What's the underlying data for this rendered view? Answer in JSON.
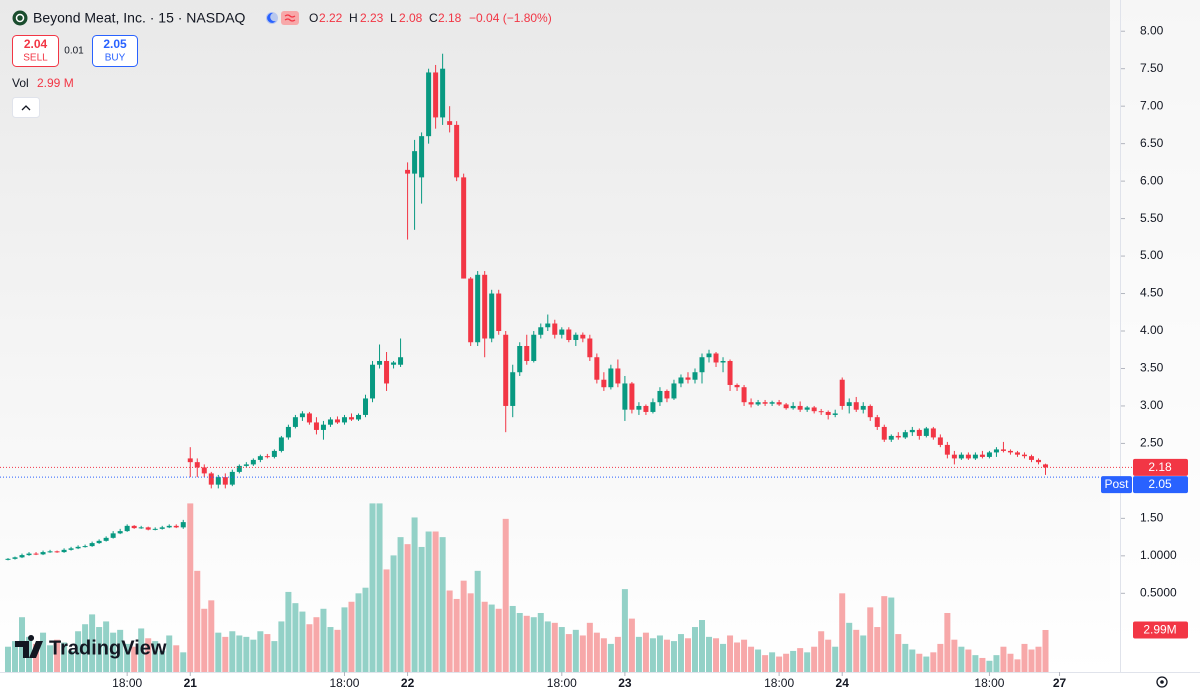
{
  "header": {
    "symbol": "Beyond Meat, Inc. · 15 · NASDAQ",
    "ohlc_labels": [
      "O",
      "H",
      "L",
      "C"
    ],
    "change": "−0.04 (−1.80%)",
    "sell": 2.04,
    "sell_label": "SELL",
    "spread": 0.01,
    "buy": 2.05,
    "buy_label": "BUY",
    "vol_label": "Vol",
    "vol_value": "2.99 M",
    "logo": "TradingView"
  },
  "chart_data": {
    "type": "candlestick",
    "open": [
      0.95,
      0.96,
      0.98,
      1.01,
      1.03,
      1.02,
      1.05,
      1.06,
      1.05,
      1.08,
      1.1,
      1.12,
      1.13,
      1.17,
      1.2,
      1.24,
      1.3,
      1.33,
      1.4,
      1.37,
      1.38,
      1.35,
      1.36,
      1.38,
      1.4,
      1.38,
      2.3,
      2.25,
      2.18,
      2.1,
      1.95,
      2.05,
      1.95,
      2.12,
      2.2,
      2.22,
      2.28,
      2.33,
      2.32,
      2.4,
      2.58,
      2.72,
      2.85,
      2.9,
      2.78,
      2.68,
      2.75,
      2.82,
      2.78,
      2.85,
      2.82,
      2.88,
      3.1,
      3.55,
      3.6,
      3.55,
      3.55,
      6.15,
      6.1,
      6.05,
      6.6,
      7.45,
      6.85,
      6.8,
      6.75,
      6.05,
      4.7,
      3.85,
      4.75,
      3.9,
      4.5,
      3.95,
      3.0,
      3.45,
      3.8,
      3.6,
      3.95,
      4.05,
      4.1,
      3.95,
      4.02,
      3.88,
      3.95,
      3.9,
      3.65,
      3.35,
      3.25,
      3.5,
      2.95,
      3.3,
      2.95,
      3.0,
      2.92,
      3.05,
      3.2,
      3.1,
      3.3,
      3.38,
      3.35,
      3.45,
      3.65,
      3.7,
      3.58,
      3.6,
      3.28,
      3.25,
      3.05,
      3.02,
      3.05,
      3.03,
      3.05,
      3.02,
      2.97,
      3.0,
      2.95,
      2.98,
      2.93,
      2.92,
      2.88,
      3.35,
      3.0,
      3.05,
      2.95,
      3.0,
      2.85,
      2.72,
      2.55,
      2.6,
      2.58,
      2.65,
      2.68,
      2.6,
      2.7,
      2.58,
      2.48,
      2.35,
      2.3,
      2.35,
      2.3,
      2.35,
      2.32,
      2.38,
      2.42,
      2.4,
      2.38,
      2.35,
      2.33,
      2.28,
      2.22
    ],
    "high": [
      0.97,
      0.99,
      1.03,
      1.05,
      1.05,
      1.07,
      1.08,
      1.07,
      1.1,
      1.12,
      1.14,
      1.15,
      1.19,
      1.22,
      1.26,
      1.33,
      1.36,
      1.42,
      1.41,
      1.4,
      1.39,
      1.38,
      1.4,
      1.42,
      1.42,
      1.48,
      2.45,
      2.3,
      2.22,
      2.12,
      2.08,
      2.1,
      2.15,
      2.22,
      2.25,
      2.3,
      2.35,
      2.36,
      2.42,
      2.6,
      2.75,
      2.88,
      2.93,
      2.92,
      2.85,
      2.8,
      2.85,
      2.86,
      2.88,
      2.9,
      2.9,
      3.15,
      3.6,
      3.82,
      3.72,
      3.6,
      3.9,
      6.25,
      6.55,
      6.65,
      7.5,
      7.55,
      7.7,
      7.0,
      6.8,
      6.1,
      4.72,
      4.8,
      4.8,
      4.55,
      4.55,
      4.0,
      3.55,
      3.85,
      3.95,
      4.0,
      4.1,
      4.22,
      4.15,
      4.05,
      4.05,
      3.98,
      3.98,
      3.95,
      3.7,
      3.45,
      3.55,
      3.62,
      3.4,
      3.32,
      3.05,
      3.02,
      3.1,
      3.25,
      3.22,
      3.35,
      3.42,
      3.45,
      3.5,
      3.7,
      3.75,
      3.72,
      3.65,
      3.62,
      3.3,
      3.28,
      3.1,
      3.08,
      3.08,
      3.07,
      3.08,
      3.04,
      3.05,
      3.06,
      3.0,
      3.0,
      2.96,
      2.94,
      2.95,
      3.38,
      3.1,
      3.12,
      3.05,
      3.02,
      2.88,
      2.75,
      2.62,
      2.65,
      2.68,
      2.72,
      2.7,
      2.72,
      2.72,
      2.62,
      2.52,
      2.4,
      2.38,
      2.38,
      2.38,
      2.4,
      2.4,
      2.45,
      2.52,
      2.42,
      2.4,
      2.38,
      2.35,
      2.3,
      2.23
    ],
    "low": [
      0.94,
      0.95,
      0.97,
      1.0,
      1.01,
      1.01,
      1.04,
      1.04,
      1.04,
      1.07,
      1.09,
      1.11,
      1.12,
      1.16,
      1.19,
      1.23,
      1.29,
      1.32,
      1.36,
      1.36,
      1.34,
      1.34,
      1.35,
      1.37,
      1.37,
      1.36,
      2.05,
      2.05,
      2.05,
      1.9,
      1.9,
      1.9,
      1.93,
      2.1,
      2.18,
      2.2,
      2.25,
      2.3,
      2.3,
      2.38,
      2.55,
      2.7,
      2.8,
      2.75,
      2.62,
      2.55,
      2.72,
      2.76,
      2.75,
      2.8,
      2.8,
      2.85,
      3.05,
      3.5,
      3.2,
      3.5,
      3.52,
      5.22,
      5.35,
      5.7,
      6.5,
      6.7,
      6.75,
      6.65,
      6.0,
      4.7,
      3.8,
      3.8,
      3.65,
      3.85,
      3.95,
      2.65,
      2.85,
      3.4,
      3.55,
      3.58,
      3.9,
      4.0,
      3.9,
      3.9,
      3.85,
      3.8,
      3.85,
      3.6,
      3.3,
      3.2,
      3.22,
      3.25,
      2.8,
      2.9,
      2.88,
      2.88,
      2.9,
      3.0,
      3.05,
      3.08,
      3.25,
      3.3,
      3.3,
      3.3,
      3.58,
      3.52,
      3.45,
      3.2,
      3.2,
      3.0,
      2.98,
      3.0,
      3.0,
      3.0,
      3.0,
      2.95,
      2.95,
      2.92,
      2.92,
      2.9,
      2.88,
      2.82,
      2.85,
      2.95,
      2.9,
      2.92,
      2.9,
      2.8,
      2.68,
      2.52,
      2.52,
      2.55,
      2.56,
      2.6,
      2.55,
      2.58,
      2.55,
      2.45,
      2.3,
      2.22,
      2.28,
      2.28,
      2.28,
      2.3,
      2.3,
      2.32,
      2.38,
      2.35,
      2.32,
      2.3,
      2.25,
      2.22,
      2.08
    ],
    "close": [
      0.96,
      0.98,
      1.01,
      1.03,
      1.02,
      1.05,
      1.06,
      1.05,
      1.08,
      1.1,
      1.12,
      1.13,
      1.17,
      1.2,
      1.24,
      1.3,
      1.33,
      1.4,
      1.37,
      1.38,
      1.35,
      1.36,
      1.38,
      1.4,
      1.38,
      1.45,
      2.25,
      2.18,
      2.1,
      1.95,
      2.05,
      1.95,
      2.12,
      2.2,
      2.22,
      2.28,
      2.33,
      2.32,
      2.4,
      2.58,
      2.72,
      2.85,
      2.9,
      2.78,
      2.68,
      2.75,
      2.82,
      2.78,
      2.85,
      2.82,
      2.88,
      3.1,
      3.55,
      3.6,
      3.3,
      3.58,
      3.65,
      6.1,
      6.4,
      6.6,
      7.45,
      6.85,
      7.5,
      6.75,
      6.05,
      4.7,
      3.85,
      4.75,
      3.9,
      4.5,
      4.0,
      3.0,
      3.45,
      3.8,
      3.6,
      3.95,
      4.05,
      4.1,
      3.95,
      4.02,
      3.88,
      3.95,
      3.9,
      3.65,
      3.35,
      3.25,
      3.5,
      3.3,
      3.3,
      2.95,
      3.0,
      2.92,
      3.05,
      3.2,
      3.1,
      3.3,
      3.38,
      3.35,
      3.45,
      3.65,
      3.7,
      3.58,
      3.6,
      3.28,
      3.25,
      3.05,
      3.02,
      3.05,
      3.03,
      3.05,
      3.02,
      2.97,
      3.0,
      2.95,
      2.98,
      2.93,
      2.92,
      2.88,
      2.9,
      3.0,
      3.05,
      2.95,
      3.0,
      2.85,
      2.72,
      2.55,
      2.6,
      2.58,
      2.65,
      2.68,
      2.6,
      2.7,
      2.58,
      2.48,
      2.35,
      2.3,
      2.35,
      2.3,
      2.35,
      2.32,
      2.38,
      2.42,
      2.4,
      2.38,
      2.35,
      2.33,
      2.28,
      2.25,
      2.18
    ],
    "volume": [
      1.8,
      2.2,
      3.9,
      2.5,
      2.0,
      2.8,
      1.9,
      2.3,
      2.1,
      1.5,
      2.9,
      3.4,
      4.1,
      3.2,
      3.6,
      2.8,
      3.0,
      2.0,
      1.8,
      3.1,
      2.4,
      2.2,
      1.5,
      2.6,
      1.9,
      1.4,
      12.0,
      7.2,
      4.5,
      5.1,
      2.8,
      2.5,
      2.9,
      2.6,
      2.5,
      2.3,
      2.9,
      2.7,
      2.2,
      3.6,
      5.7,
      4.9,
      4.3,
      3.4,
      3.9,
      4.5,
      3.2,
      3.0,
      4.6,
      5.0,
      5.6,
      6.0,
      12.0,
      12.0,
      7.3,
      8.3,
      9.6,
      9.1,
      11.0,
      8.9,
      10.0,
      10.0,
      9.6,
      5.8,
      5.2,
      6.5,
      5.6,
      7.2,
      5.0,
      4.8,
      4.5,
      10.9,
      4.7,
      4.2,
      4.0,
      3.9,
      4.2,
      3.6,
      3.5,
      3.2,
      2.7,
      3.0,
      2.6,
      3.5,
      2.8,
      2.4,
      2.0,
      2.5,
      5.9,
      3.8,
      2.5,
      2.8,
      2.4,
      2.6,
      2.3,
      2.2,
      2.7,
      2.4,
      3.2,
      3.7,
      2.5,
      2.4,
      2.0,
      2.6,
      2.1,
      2.3,
      1.8,
      1.6,
      1.2,
      1.4,
      1.1,
      1.3,
      1.5,
      1.7,
      1.4,
      1.8,
      2.9,
      2.3,
      1.8,
      5.6,
      3.5,
      3.0,
      2.6,
      4.6,
      3.2,
      5.4,
      5.3,
      2.7,
      2.0,
      1.6,
      1.3,
      1.1,
      1.4,
      2.0,
      4.2,
      2.3,
      1.8,
      1.6,
      1.2,
      1.0,
      0.8,
      1.2,
      1.8,
      1.3,
      0.9,
      2.0,
      1.6,
      1.8,
      2.99
    ],
    "volume_badge": "2.99M",
    "post_label": "Post",
    "post_price": 2.05,
    "up_color": "#089981",
    "down_color": "#f23645",
    "volume_up_color": "#93d1c7",
    "volume_down_color": "#f7a8a9",
    "xlim": [
      -1.14,
      157.2
    ],
    "xticks": [
      {
        "value": 17,
        "label": "18:00"
      },
      {
        "value": 26,
        "label": "21"
      },
      {
        "value": 48,
        "label": "18:00"
      },
      {
        "value": 57,
        "label": "22"
      },
      {
        "value": 79,
        "label": "18:00"
      },
      {
        "value": 88,
        "label": "23"
      },
      {
        "value": 110,
        "label": "18:00"
      },
      {
        "value": 119,
        "label": "24"
      },
      {
        "value": 140,
        "label": "18:00"
      },
      {
        "value": 150,
        "label": "27"
      }
    ],
    "ylim": [
      -0.55,
      8.35
    ],
    "yticks": [
      {
        "value": 8,
        "label": "8.00"
      },
      {
        "value": 7.5,
        "label": "7.50"
      },
      {
        "value": 7,
        "label": "7.00"
      },
      {
        "value": 6.5,
        "label": "6.50"
      },
      {
        "value": 6,
        "label": "6.00"
      },
      {
        "value": 5.5,
        "label": "5.50"
      },
      {
        "value": 5,
        "label": "5.00"
      },
      {
        "value": 4.5,
        "label": "4.50"
      },
      {
        "value": 4,
        "label": "4.00"
      },
      {
        "value": 3.5,
        "label": "3.50"
      },
      {
        "value": 3,
        "label": "3.00"
      },
      {
        "value": 2.5,
        "label": "2.50"
      },
      {
        "value": 1.5,
        "label": "1.50"
      },
      {
        "value": 1,
        "label": "1.0000"
      },
      {
        "value": 0.5,
        "label": "0.5000"
      }
    ],
    "vlim": [
      0,
      12.1
    ],
    "grid": false
  }
}
